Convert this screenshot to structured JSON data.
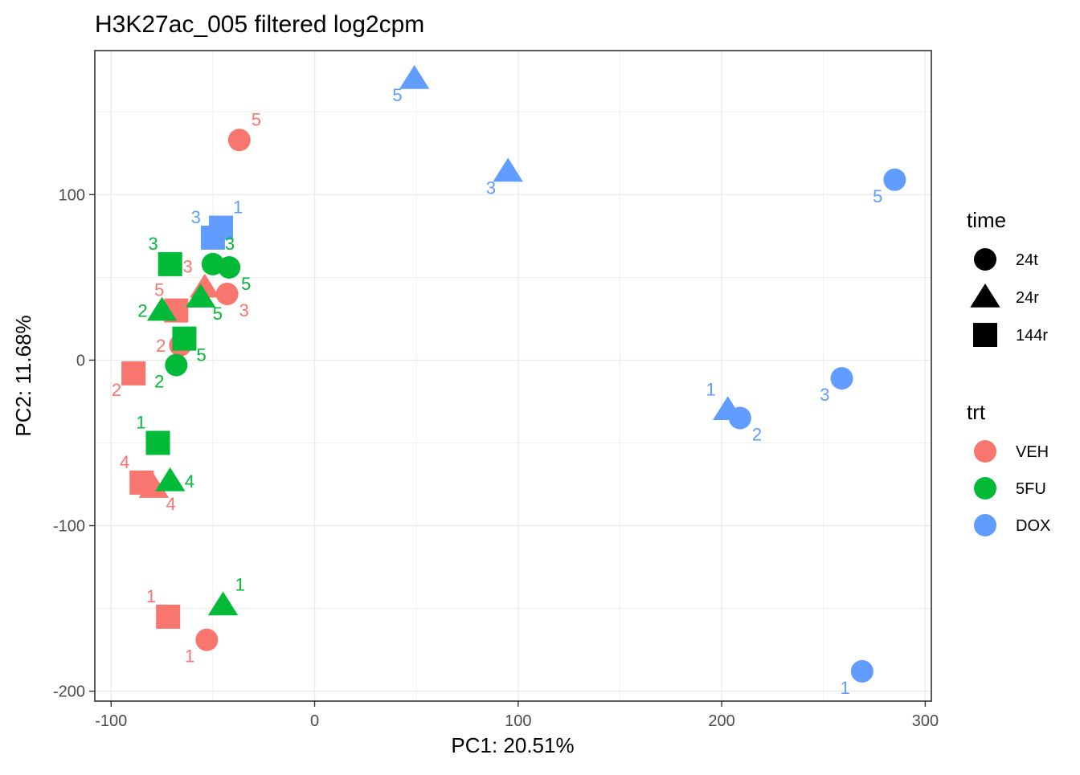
{
  "chart_data": {
    "type": "scatter",
    "title": "H3K27ac_005 filtered log2cpm",
    "xlabel": "PC1: 20.51%",
    "ylabel": "PC2: 11.68%",
    "xlim": [
      -108,
      303
    ],
    "ylim": [
      -206,
      187
    ],
    "xticks": [
      -100,
      0,
      100,
      200,
      300
    ],
    "yticks": [
      -200,
      -100,
      0,
      100
    ],
    "xtick_labels": [
      "-100",
      "0",
      "100",
      "200",
      "300"
    ],
    "ytick_labels": [
      "-200",
      "-100",
      "0",
      "100"
    ],
    "grid": true,
    "legend": {
      "placement": "right",
      "shape_title": "time",
      "shape_items": [
        {
          "label": "24t",
          "shape": "circle"
        },
        {
          "label": "24r",
          "shape": "triangle"
        },
        {
          "label": "144r",
          "shape": "square"
        }
      ],
      "color_title": "trt",
      "color_items": [
        {
          "label": "VEH",
          "color": "#F8766D"
        },
        {
          "label": "5FU",
          "color": "#00BA38"
        },
        {
          "label": "DOX",
          "color": "#619CFF"
        }
      ]
    },
    "colors": {
      "VEH": "#F8766D",
      "5FU": "#00BA38",
      "DOX": "#619CFF"
    },
    "points": [
      {
        "x": -37,
        "y": 133,
        "trt": "VEH",
        "time": "24t",
        "label": "5",
        "label_pos": "ne"
      },
      {
        "x": -43,
        "y": 40,
        "trt": "VEH",
        "time": "24t",
        "label": "3",
        "label_pos": "se"
      },
      {
        "x": -66,
        "y": 9,
        "trt": "VEH",
        "time": "24t",
        "label": "2",
        "label_pos": "w"
      },
      {
        "x": -53,
        "y": -169,
        "trt": "VEH",
        "time": "24t",
        "label": "1",
        "label_pos": "sw"
      },
      {
        "x": -54,
        "y": 44,
        "trt": "VEH",
        "time": "24r",
        "label": "3",
        "label_pos": "nw"
      },
      {
        "x": -79,
        "y": -77,
        "trt": "VEH",
        "time": "24r",
        "label": "4",
        "label_pos": "se"
      },
      {
        "x": -68,
        "y": 30,
        "trt": "VEH",
        "time": "144r",
        "label": "5",
        "label_pos": "nw"
      },
      {
        "x": -89,
        "y": -8,
        "trt": "VEH",
        "time": "144r",
        "label": "2",
        "label_pos": "sw"
      },
      {
        "x": -85,
        "y": -74,
        "trt": "VEH",
        "time": "144r",
        "label": "4",
        "label_pos": "nw"
      },
      {
        "x": -72,
        "y": -155,
        "trt": "VEH",
        "time": "144r",
        "label": "1",
        "label_pos": "nw"
      },
      {
        "x": -50,
        "y": 58,
        "trt": "5FU",
        "time": "24t",
        "label": "3",
        "label_pos": "ne"
      },
      {
        "x": -42,
        "y": 56,
        "trt": "5FU",
        "time": "24t",
        "label": "5",
        "label_pos": "se"
      },
      {
        "x": -68,
        "y": -3,
        "trt": "5FU",
        "time": "24t",
        "label": "2",
        "label_pos": "sw"
      },
      {
        "x": -75,
        "y": 30,
        "trt": "5FU",
        "time": "24r",
        "label": "2",
        "label_pos": "w"
      },
      {
        "x": -56,
        "y": 38,
        "trt": "5FU",
        "time": "24r",
        "label": "5",
        "label_pos": "se"
      },
      {
        "x": -71,
        "y": -73,
        "trt": "5FU",
        "time": "24r",
        "label": "4",
        "label_pos": "e"
      },
      {
        "x": -45,
        "y": -148,
        "trt": "5FU",
        "time": "24r",
        "label": "1",
        "label_pos": "ne"
      },
      {
        "x": -71,
        "y": 58,
        "trt": "5FU",
        "time": "144r",
        "label": "3",
        "label_pos": "nw"
      },
      {
        "x": -64,
        "y": 13,
        "trt": "5FU",
        "time": "144r",
        "label": "5",
        "label_pos": "se"
      },
      {
        "x": -77,
        "y": -50,
        "trt": "5FU",
        "time": "144r",
        "label": "1",
        "label_pos": "nw"
      },
      {
        "x": 285,
        "y": 109,
        "trt": "DOX",
        "time": "24t",
        "label": "5",
        "label_pos": "sw"
      },
      {
        "x": 259,
        "y": -11,
        "trt": "DOX",
        "time": "24t",
        "label": "3",
        "label_pos": "sw"
      },
      {
        "x": 209,
        "y": -35,
        "trt": "DOX",
        "time": "24t",
        "label": "2",
        "label_pos": "se"
      },
      {
        "x": 269,
        "y": -188,
        "trt": "DOX",
        "time": "24t",
        "label": "1",
        "label_pos": "sw"
      },
      {
        "x": 49,
        "y": 170,
        "trt": "DOX",
        "time": "24r",
        "label": "5",
        "label_pos": "sw"
      },
      {
        "x": 95,
        "y": 114,
        "trt": "DOX",
        "time": "24r",
        "label": "3",
        "label_pos": "sw"
      },
      {
        "x": 203,
        "y": -30,
        "trt": "DOX",
        "time": "24r",
        "label": "1",
        "label_pos": "nw"
      },
      {
        "x": -46,
        "y": 80,
        "trt": "DOX",
        "time": "144r",
        "label": "1",
        "label_pos": "ne"
      },
      {
        "x": -50,
        "y": 74,
        "trt": "DOX",
        "time": "144r",
        "label": "3",
        "label_pos": "nw"
      }
    ]
  }
}
